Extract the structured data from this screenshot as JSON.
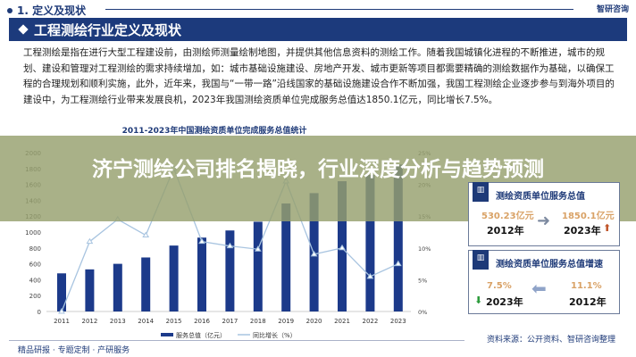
{
  "header": {
    "section": "1. 定义及现状",
    "brand": "智研咨询",
    "banner": "工程测绘行业定义及现状"
  },
  "paragraph": "工程测绘是指在进行大型工程建设前，由测绘师测量绘制地图，并提供其他信息资料的测绘工作。随着我国城镇化进程的不断推进，城市的规划、建设和管理对工程测绘的需求持续增加，如：城市基础设施建设、房地产开发、城市更新等项目都需要精确的测绘数据作为基础，以确保工程的合理规划和顺利实施，此外，近年来，我国与“一带一路”沿线国家的基础设施建设合作不断加强，我国工程测绘企业逐步参与到海外项目的建设中，为工程测绘行业带来发展良机，2023年我国测绘资质单位完成服务总值达1850.1亿元，同比增长7.5%。",
  "overlay_title": "济宁测绘公司排名揭晓，行业深度分析与趋势预测",
  "chart_data": {
    "type": "bar",
    "title": "2011-2023年中国测绘资质单位完成服务总值统计",
    "categories": [
      "2011",
      "2012",
      "2013",
      "2014",
      "2015",
      "2016",
      "2017",
      "2018",
      "2019",
      "2020",
      "2021",
      "2022",
      "2023"
    ],
    "series": [
      {
        "name": "服务总值（亿元）",
        "type": "bar",
        "axis": "left",
        "values": [
          480,
          530,
          600,
          680,
          830,
          930,
          1020,
          1130,
          1360,
          1490,
          1640,
          1720,
          1850.1
        ]
      },
      {
        "name": "同比增长（%）",
        "type": "line",
        "axis": "right",
        "values": [
          0,
          11,
          14.5,
          12,
          22.5,
          11,
          10.3,
          9.8,
          20.5,
          9,
          10,
          5.5,
          7.5
        ]
      }
    ],
    "ylim": [
      0,
      2000
    ],
    "yticks": [
      0,
      200,
      400,
      600,
      800,
      1000,
      1200,
      1400,
      1600,
      1800,
      2000
    ],
    "y2lim": [
      0,
      25
    ],
    "y2ticks": [
      "0%",
      "5%",
      "10%",
      "15%",
      "20%",
      "25%"
    ],
    "colors": {
      "bar": "#1c3a8a",
      "line": "#a8c4e0"
    },
    "legend": "bottom"
  },
  "cards": [
    {
      "title": "测绘资质单位服务总值",
      "from_value": "530.23亿元",
      "from_year": "2012年",
      "to_value": "1850.1亿元",
      "to_year": "2023年",
      "trend": "up"
    },
    {
      "title": "测绘资质单位服务总值增速",
      "from_value": "11.1%",
      "from_year": "2012年",
      "to_value": "7.5%",
      "to_year": "2023年",
      "trend": "down"
    }
  ],
  "footer": {
    "left": "精品研报 · 专题定制 · 产研服务",
    "source": "资料来源：公开资料、智研咨询整理"
  }
}
